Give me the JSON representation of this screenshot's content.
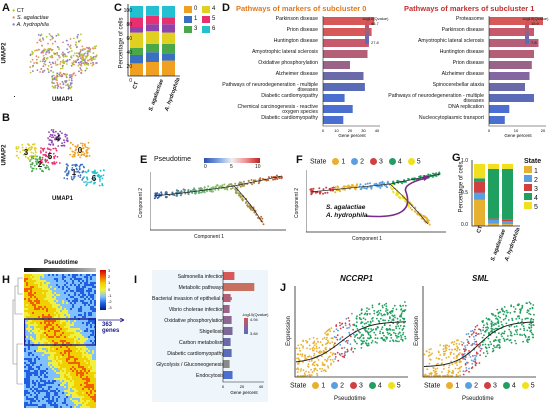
{
  "panelA": {
    "letter": "A",
    "legend": [
      {
        "label": "CT",
        "color": "#b5c934"
      },
      {
        "label": "S. agalactiae",
        "color": "#e98a6a"
      },
      {
        "label": "A. hydrophila",
        "color": "#8d7fc1"
      }
    ],
    "xlabel": "UMAP1",
    "ylabel": "UMAP2"
  },
  "panelB": {
    "letter": "B",
    "xlabel": "UMAP1",
    "ylabel": "UMAP2",
    "clusters": [
      "0",
      "1",
      "2",
      "3",
      "4",
      "5",
      "6"
    ]
  },
  "panelC": {
    "letter": "C",
    "ylabel": "Percentage of cells",
    "yticks": [
      "0",
      "20",
      "40",
      "60",
      "80",
      "100"
    ],
    "groups": [
      "CT",
      "S. agalactiae",
      "A. hydrophila"
    ],
    "legend": [
      {
        "label": "0",
        "color": "#f0a020"
      },
      {
        "label": "1",
        "color": "#3b6fc0"
      },
      {
        "label": "2",
        "color": "#4aa84a"
      },
      {
        "label": "3",
        "color": "#e0d020"
      },
      {
        "label": "4",
        "color": "#8e44ad"
      },
      {
        "label": "5",
        "color": "#e83070"
      },
      {
        "label": "6",
        "color": "#22c0d0"
      }
    ]
  },
  "panelD": {
    "letter": "D",
    "title0": "Pathways of markers of subcluster 0",
    "title1": "Pathways of markers of subcluster 1",
    "left_items": [
      "Parkinson disease",
      "Prion disease",
      "Huntington disease",
      "Amyotrophic lateral sclerosis",
      "Oxidative phosphorylation",
      "Alzheimer disease",
      "Pathways of neurodegeneration - multiple diseases",
      "Diabetic cardiomyopathy",
      "Chemical carcinogenesis - reactive oxygen species",
      "Diabetic cardiomyopathy"
    ],
    "right_items": [
      "Proteasome",
      "Parkinson disease",
      "Amyotrophic lateral sclerosis",
      "Huntington disease",
      "Prion disease",
      "Alzheimer disease",
      "Spinocerebellar ataxia",
      "Pathways of neurodegeneration - multiple diseases",
      "DNA replication",
      "Nucleocytoplasmic transport"
    ],
    "xlabel": "Gene percent",
    "legend_title": "-log10(Qvalue)",
    "left_scale": [
      "46.7",
      "27.8"
    ],
    "right_scale": [
      "15.9",
      "7.8"
    ],
    "left_ticks": [
      "0",
      "10",
      "20",
      "30",
      "40"
    ],
    "right_ticks": [
      "0",
      "10",
      "20"
    ]
  },
  "panelE": {
    "letter": "E",
    "legend_title": "Pseudotime",
    "scale": [
      "0",
      "5",
      "10"
    ],
    "xlabel": "Component 1",
    "ylabel": "Component 2"
  },
  "panelF": {
    "letter": "F",
    "state_label": "State",
    "states": [
      "1",
      "2",
      "3",
      "4",
      "5"
    ],
    "annotation1": "S. agalactiae",
    "annotation2": "A. hydrophila",
    "xlabel": "Component 1",
    "ylabel": "Component 2"
  },
  "panelG": {
    "letter": "G",
    "ylabel": "Percentage of cells",
    "yticks": [
      "0.0",
      "0.5",
      "1.0"
    ],
    "groups": [
      "CT",
      "S. agalactiae",
      "A. hydrophila"
    ],
    "legend_title": "State",
    "states": [
      {
        "label": "1",
        "color": "#e8b030"
      },
      {
        "label": "2",
        "color": "#5aa0e0"
      },
      {
        "label": "3",
        "color": "#d04040"
      },
      {
        "label": "4",
        "color": "#20a060"
      },
      {
        "label": "5",
        "color": "#f0e020"
      }
    ]
  },
  "panelH": {
    "letter": "H",
    "title": "Pseudotime",
    "genes_label": "363 genes",
    "scale": [
      "3",
      "2",
      "1",
      "0",
      "-1",
      "-2",
      "-3"
    ]
  },
  "panelI": {
    "letter": "I",
    "items": [
      "Salmonella infection",
      "Metabolic pathways",
      "Bacterial invasion of epithelial cells",
      "Vibrio cholerae infection",
      "Oxidative phosphorylation",
      "Shigellosis",
      "Carbon metabolism",
      "Diabetic cardiomyopathy",
      "Glycolysis / Gluconeogenesis",
      "Endocytosis"
    ],
    "xlabel": "Gene percent",
    "ticks": [
      "0",
      "20",
      "40"
    ],
    "legend_title": "-log10(Qvalue)",
    "scale": [
      "4.94",
      "3.84"
    ]
  },
  "panelJ": {
    "letter": "J",
    "gene1": "NCCRP1",
    "gene2": "SML",
    "ylabel": "Expression",
    "xlabel": "Pseudotime",
    "state_label": "State",
    "states": [
      "1",
      "2",
      "3",
      "4",
      "5"
    ]
  }
}
